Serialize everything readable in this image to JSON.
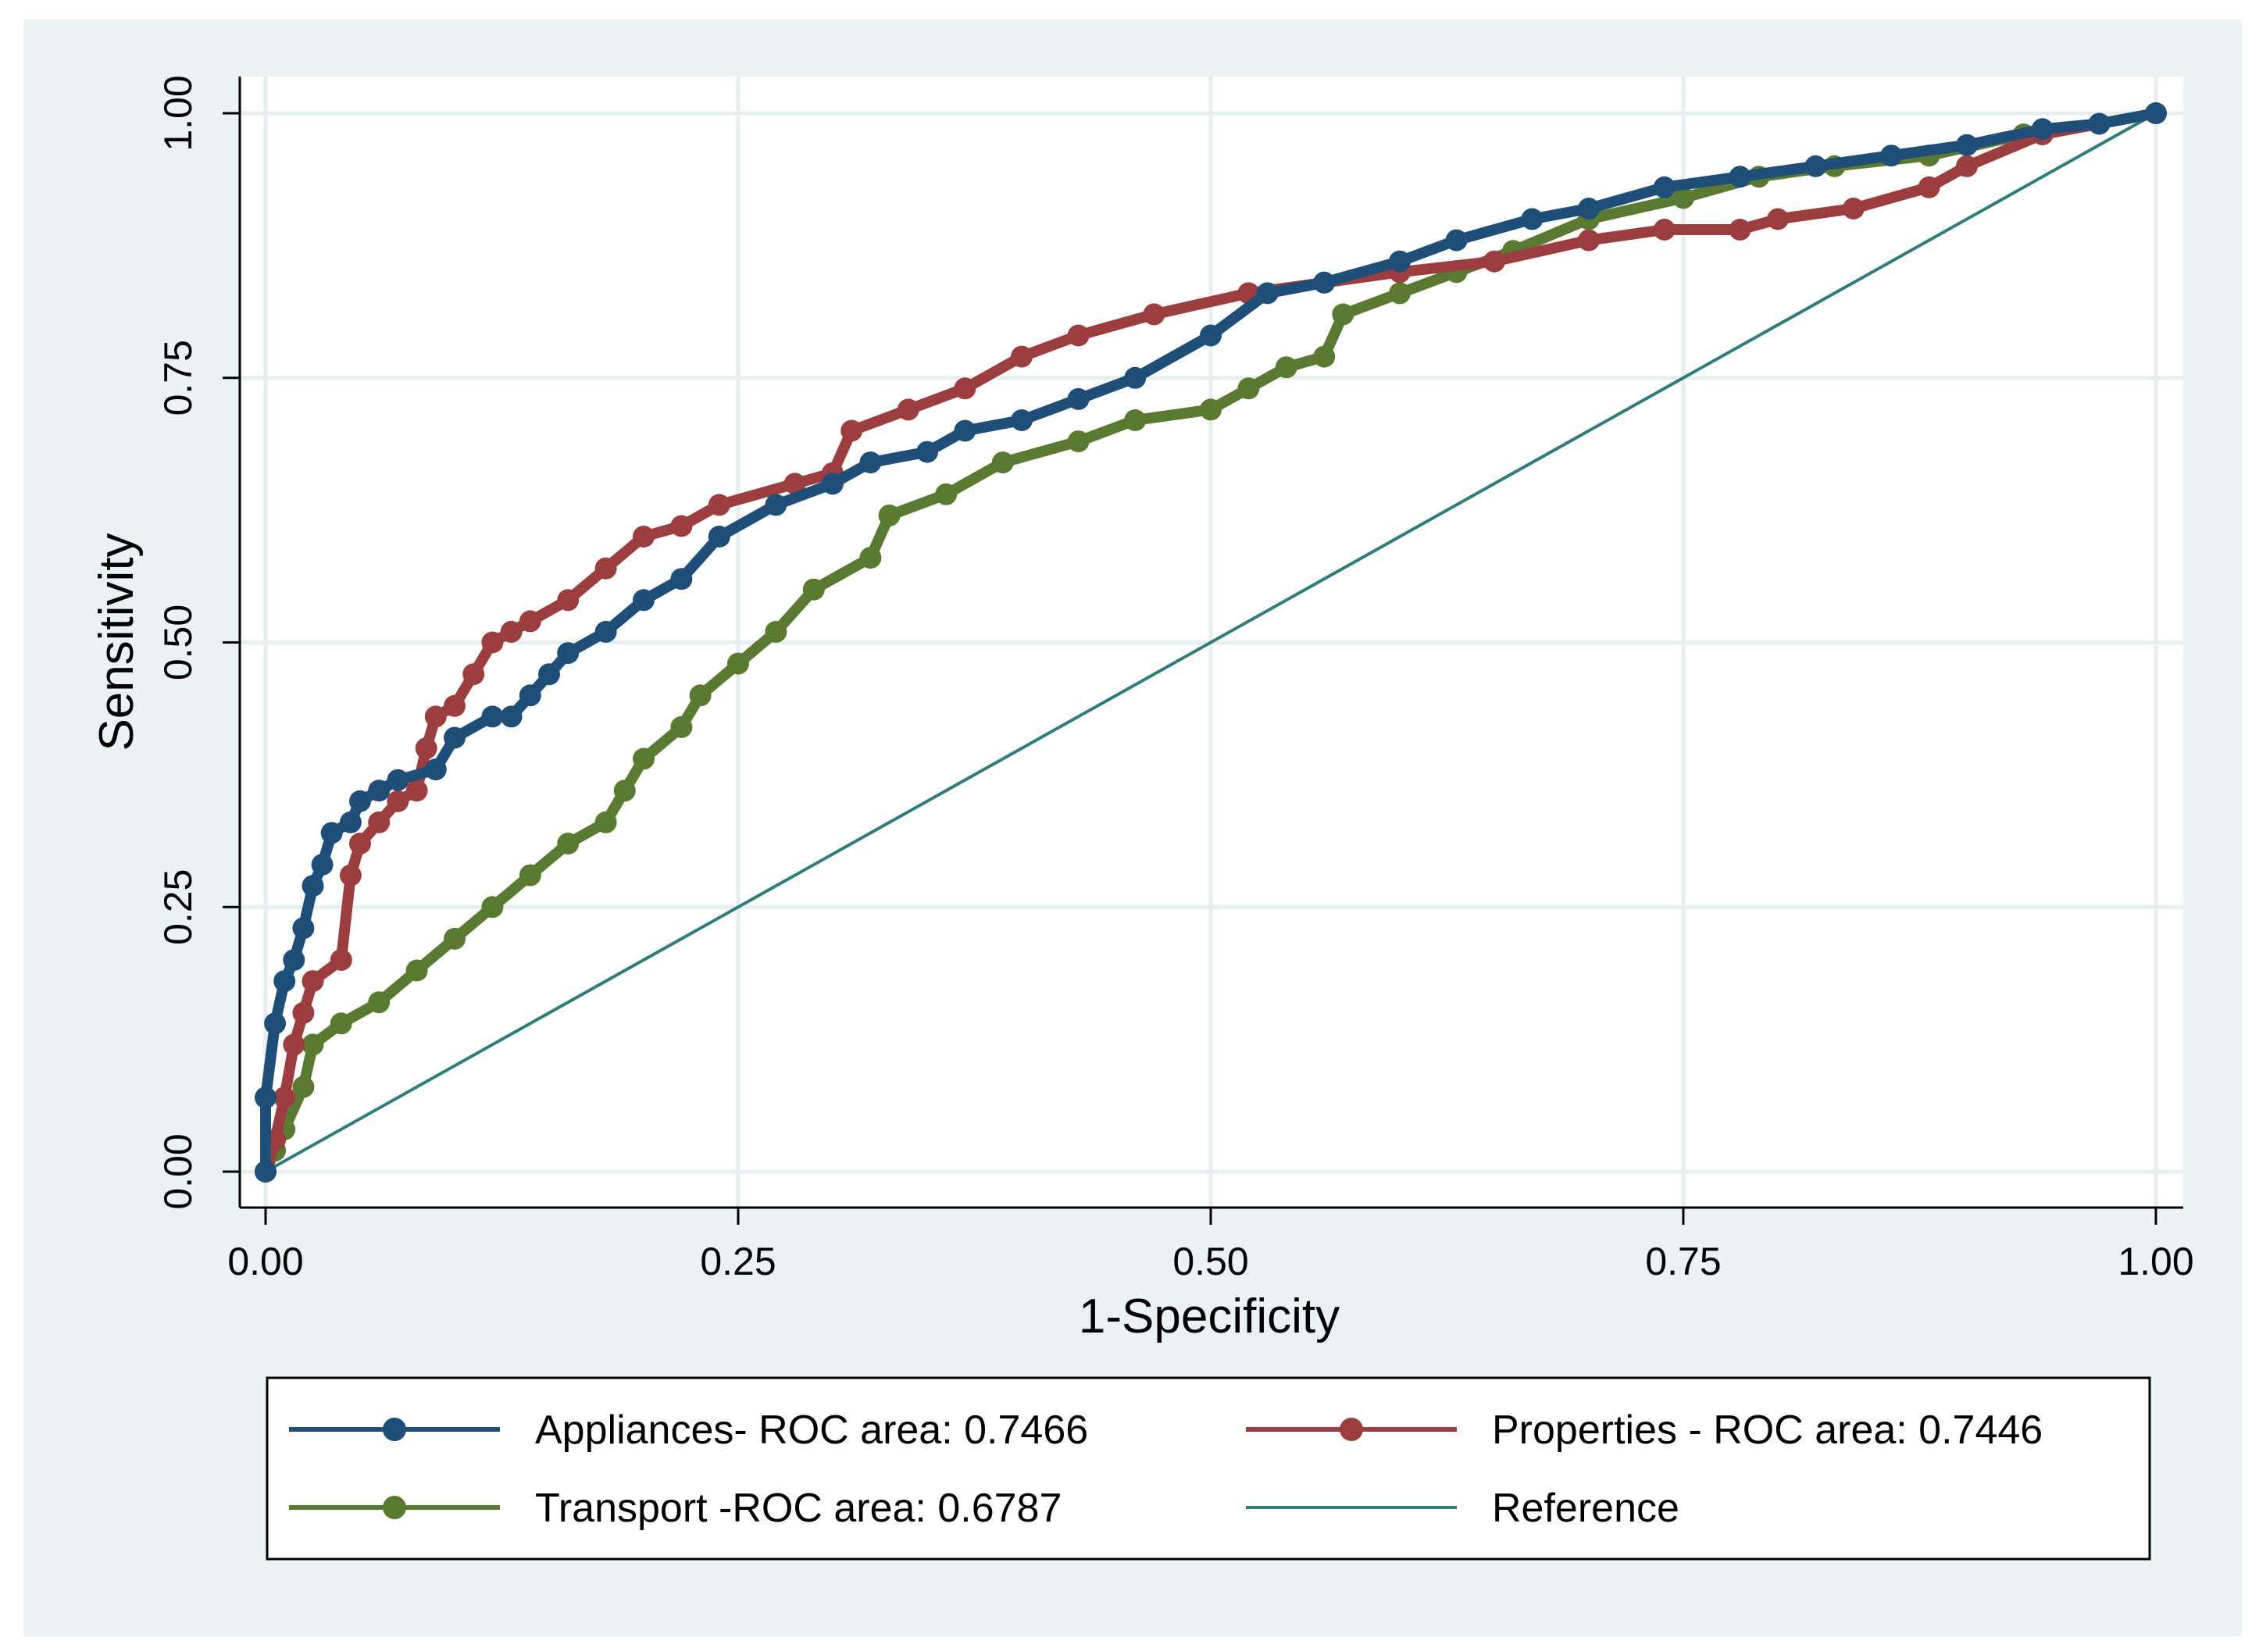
{
  "chart_data": {
    "type": "line",
    "title": "",
    "xlabel": "1-Specificity",
    "ylabel": "Sensitivity",
    "xlim": [
      0,
      1
    ],
    "ylim": [
      0,
      1
    ],
    "grid": true,
    "legend_position": "bottom",
    "xticks": [
      {
        "value": 0,
        "label": "0.00"
      },
      {
        "value": 0.25,
        "label": "0.25"
      },
      {
        "value": 0.5,
        "label": "0.50"
      },
      {
        "value": 0.75,
        "label": "0.75"
      },
      {
        "value": 1,
        "label": "1.00"
      }
    ],
    "yticks": [
      {
        "value": 0,
        "label": "0.00"
      },
      {
        "value": 0.25,
        "label": "0.25"
      },
      {
        "value": 0.5,
        "label": "0.50"
      },
      {
        "value": 0.75,
        "label": "0.75"
      },
      {
        "value": 1,
        "label": "1.00"
      }
    ],
    "series": [
      {
        "name": "Appliances- ROC area: 0.7466",
        "color": "#1f4e79",
        "markers": true,
        "points": [
          [
            0,
            0
          ],
          [
            0,
            0.07
          ],
          [
            0.005,
            0.14
          ],
          [
            0.01,
            0.18
          ],
          [
            0.015,
            0.2
          ],
          [
            0.02,
            0.23
          ],
          [
            0.025,
            0.27
          ],
          [
            0.03,
            0.29
          ],
          [
            0.035,
            0.32
          ],
          [
            0.045,
            0.33
          ],
          [
            0.05,
            0.35
          ],
          [
            0.06,
            0.36
          ],
          [
            0.07,
            0.37
          ],
          [
            0.09,
            0.38
          ],
          [
            0.1,
            0.41
          ],
          [
            0.12,
            0.43
          ],
          [
            0.13,
            0.43
          ],
          [
            0.14,
            0.45
          ],
          [
            0.15,
            0.47
          ],
          [
            0.16,
            0.49
          ],
          [
            0.18,
            0.51
          ],
          [
            0.2,
            0.54
          ],
          [
            0.22,
            0.56
          ],
          [
            0.24,
            0.6
          ],
          [
            0.27,
            0.63
          ],
          [
            0.3,
            0.65
          ],
          [
            0.32,
            0.67
          ],
          [
            0.35,
            0.68
          ],
          [
            0.37,
            0.7
          ],
          [
            0.4,
            0.71
          ],
          [
            0.43,
            0.73
          ],
          [
            0.46,
            0.75
          ],
          [
            0.5,
            0.79
          ],
          [
            0.53,
            0.83
          ],
          [
            0.56,
            0.84
          ],
          [
            0.6,
            0.86
          ],
          [
            0.63,
            0.88
          ],
          [
            0.67,
            0.9
          ],
          [
            0.7,
            0.91
          ],
          [
            0.74,
            0.93
          ],
          [
            0.78,
            0.94
          ],
          [
            0.82,
            0.95
          ],
          [
            0.86,
            0.96
          ],
          [
            0.9,
            0.97
          ],
          [
            0.94,
            0.985
          ],
          [
            0.97,
            0.99
          ],
          [
            1,
            1
          ]
        ]
      },
      {
        "name": "Properties - ROC area: 0.7446",
        "color": "#9c3d3f",
        "markers": true,
        "points": [
          [
            0,
            0
          ],
          [
            0.005,
            0.03
          ],
          [
            0.01,
            0.07
          ],
          [
            0.015,
            0.12
          ],
          [
            0.02,
            0.15
          ],
          [
            0.025,
            0.18
          ],
          [
            0.04,
            0.2
          ],
          [
            0.045,
            0.28
          ],
          [
            0.05,
            0.31
          ],
          [
            0.06,
            0.33
          ],
          [
            0.07,
            0.35
          ],
          [
            0.08,
            0.36
          ],
          [
            0.085,
            0.4
          ],
          [
            0.09,
            0.43
          ],
          [
            0.1,
            0.44
          ],
          [
            0.11,
            0.47
          ],
          [
            0.12,
            0.5
          ],
          [
            0.13,
            0.51
          ],
          [
            0.14,
            0.52
          ],
          [
            0.16,
            0.54
          ],
          [
            0.18,
            0.57
          ],
          [
            0.2,
            0.6
          ],
          [
            0.22,
            0.61
          ],
          [
            0.24,
            0.63
          ],
          [
            0.28,
            0.65
          ],
          [
            0.3,
            0.66
          ],
          [
            0.31,
            0.7
          ],
          [
            0.34,
            0.72
          ],
          [
            0.37,
            0.74
          ],
          [
            0.4,
            0.77
          ],
          [
            0.43,
            0.79
          ],
          [
            0.47,
            0.81
          ],
          [
            0.52,
            0.83
          ],
          [
            0.56,
            0.84
          ],
          [
            0.6,
            0.85
          ],
          [
            0.65,
            0.86
          ],
          [
            0.7,
            0.88
          ],
          [
            0.74,
            0.89
          ],
          [
            0.78,
            0.89
          ],
          [
            0.8,
            0.9
          ],
          [
            0.84,
            0.91
          ],
          [
            0.88,
            0.93
          ],
          [
            0.9,
            0.95
          ],
          [
            0.94,
            0.98
          ],
          [
            1,
            1
          ]
        ]
      },
      {
        "name": "Transport -ROC area: 0.6787",
        "color": "#5a7a32",
        "markers": true,
        "points": [
          [
            0,
            0
          ],
          [
            0.005,
            0.02
          ],
          [
            0.01,
            0.04
          ],
          [
            0.02,
            0.08
          ],
          [
            0.025,
            0.12
          ],
          [
            0.04,
            0.14
          ],
          [
            0.06,
            0.16
          ],
          [
            0.08,
            0.19
          ],
          [
            0.1,
            0.22
          ],
          [
            0.12,
            0.25
          ],
          [
            0.14,
            0.28
          ],
          [
            0.16,
            0.31
          ],
          [
            0.18,
            0.33
          ],
          [
            0.19,
            0.36
          ],
          [
            0.2,
            0.39
          ],
          [
            0.22,
            0.42
          ],
          [
            0.23,
            0.45
          ],
          [
            0.25,
            0.48
          ],
          [
            0.27,
            0.51
          ],
          [
            0.29,
            0.55
          ],
          [
            0.32,
            0.58
          ],
          [
            0.33,
            0.62
          ],
          [
            0.36,
            0.64
          ],
          [
            0.39,
            0.67
          ],
          [
            0.43,
            0.69
          ],
          [
            0.46,
            0.71
          ],
          [
            0.5,
            0.72
          ],
          [
            0.52,
            0.74
          ],
          [
            0.54,
            0.76
          ],
          [
            0.56,
            0.77
          ],
          [
            0.57,
            0.81
          ],
          [
            0.6,
            0.83
          ],
          [
            0.63,
            0.85
          ],
          [
            0.66,
            0.87
          ],
          [
            0.7,
            0.9
          ],
          [
            0.75,
            0.92
          ],
          [
            0.79,
            0.94
          ],
          [
            0.83,
            0.95
          ],
          [
            0.88,
            0.96
          ],
          [
            0.93,
            0.98
          ],
          [
            0.97,
            0.99
          ],
          [
            1,
            1
          ]
        ]
      },
      {
        "name": "Reference",
        "color": "#2e7d7a",
        "markers": false,
        "points": [
          [
            0,
            0
          ],
          [
            1,
            1
          ]
        ]
      }
    ],
    "legend": [
      {
        "label": "Appliances- ROC area: 0.7466",
        "color": "#1f4e79",
        "marker": true
      },
      {
        "label": "Properties - ROC area: 0.7446",
        "color": "#9c3d3f",
        "marker": true
      },
      {
        "label": "Transport -ROC area: 0.6787",
        "color": "#5a7a32",
        "marker": true
      },
      {
        "label": "Reference",
        "color": "#2e7d7a",
        "marker": false
      }
    ]
  }
}
